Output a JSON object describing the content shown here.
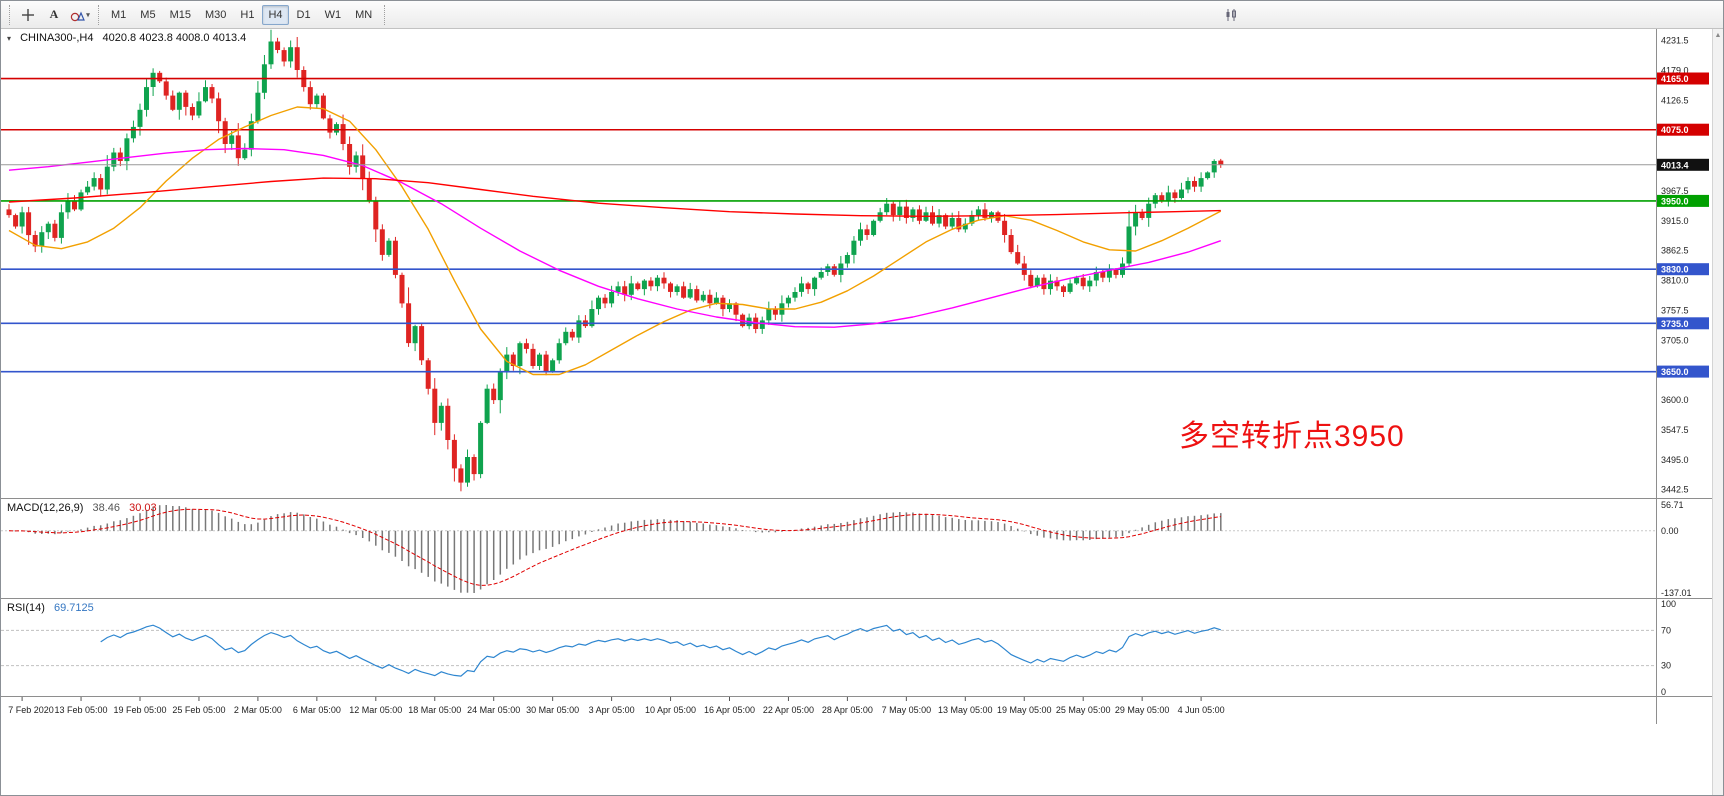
{
  "toolbar": {
    "text_tool_label": "A",
    "timeframes": [
      {
        "label": "M1"
      },
      {
        "label": "M5"
      },
      {
        "label": "M15"
      },
      {
        "label": "M30"
      },
      {
        "label": "H1"
      },
      {
        "label": "H4",
        "active": true
      },
      {
        "label": "D1"
      },
      {
        "label": "W1"
      },
      {
        "label": "MN"
      }
    ]
  },
  "chart": {
    "title": {
      "symbol": "CHINA300-,H4",
      "ohlc": "4020.8 4023.8 4008.0 4013.4"
    },
    "annotation": {
      "text": "多空转折点3950",
      "color": "#ee1111"
    }
  },
  "chart_data": {
    "type": "candlestick",
    "symbol": "CHINA300-,H4",
    "timeframe": "H4",
    "bull_color": "#0fa34e",
    "bear_color": "#df2422",
    "open0": 3935,
    "closes": [
      3925,
      3905,
      3930,
      3890,
      3870,
      3895,
      3910,
      3885,
      3930,
      3950,
      3935,
      3965,
      3975,
      3990,
      3970,
      4010,
      4035,
      4020,
      4060,
      4080,
      4110,
      4150,
      4175,
      4160,
      4135,
      4110,
      4140,
      4115,
      4100,
      4125,
      4150,
      4130,
      4090,
      4050,
      4065,
      4025,
      4040,
      4090,
      4140,
      4190,
      4230,
      4215,
      4195,
      4220,
      4180,
      4150,
      4120,
      4135,
      4095,
      4070,
      4085,
      4050,
      4010,
      4030,
      3990,
      3950,
      3900,
      3855,
      3880,
      3820,
      3770,
      3700,
      3730,
      3670,
      3620,
      3560,
      3590,
      3530,
      3480,
      3455,
      3500,
      3470,
      3560,
      3620,
      3600,
      3650,
      3680,
      3660,
      3700,
      3690,
      3660,
      3680,
      3650,
      3670,
      3700,
      3720,
      3710,
      3740,
      3730,
      3760,
      3780,
      3770,
      3790,
      3800,
      3785,
      3805,
      3795,
      3810,
      3800,
      3815,
      3805,
      3790,
      3800,
      3780,
      3795,
      3775,
      3785,
      3770,
      3780,
      3760,
      3770,
      3750,
      3730,
      3745,
      3725,
      3740,
      3760,
      3750,
      3770,
      3780,
      3790,
      3805,
      3795,
      3815,
      3825,
      3835,
      3820,
      3840,
      3855,
      3880,
      3900,
      3890,
      3915,
      3930,
      3945,
      3925,
      3940,
      3920,
      3935,
      3915,
      3930,
      3910,
      3925,
      3905,
      3920,
      3900,
      3910,
      3925,
      3935,
      3920,
      3930,
      3915,
      3890,
      3860,
      3840,
      3820,
      3800,
      3815,
      3795,
      3810,
      3800,
      3790,
      3805,
      3815,
      3800,
      3810,
      3825,
      3815,
      3830,
      3820,
      3840,
      3905,
      3930,
      3920,
      3945,
      3960,
      3950,
      3965,
      3955,
      3970,
      3985,
      3975,
      3990,
      4000,
      4020,
      4013.4
    ],
    "last_candle": [
      4020.8,
      4023.8,
      4008.0,
      4013.4
    ],
    "price_axis": {
      "ticks": [
        {
          "label": "4231.5",
          "value": 4231.5
        },
        {
          "label": "4179.0",
          "value": 4179
        },
        {
          "label": "4126.5",
          "value": 4126.5
        },
        {
          "label": "3967.5",
          "value": 3967.5
        },
        {
          "label": "3915.0",
          "value": 3915
        },
        {
          "label": "3862.5",
          "value": 3862.5
        },
        {
          "label": "3810.0",
          "value": 3810
        },
        {
          "label": "3757.5",
          "value": 3757.5
        },
        {
          "label": "3705.0",
          "value": 3705
        },
        {
          "label": "3600.0",
          "value": 3600
        },
        {
          "label": "3547.5",
          "value": 3547.5
        },
        {
          "label": "3495.0",
          "value": 3495
        },
        {
          "label": "3442.5",
          "value": 3442.5
        }
      ]
    },
    "hlines": [
      {
        "label": "4165.0",
        "value": 4165,
        "color": "#d40000"
      },
      {
        "label": "4075.0",
        "value": 4075,
        "color": "#d40000"
      },
      {
        "label": "3950.0",
        "value": 3950,
        "color": "#00a000"
      },
      {
        "label": "3830.0",
        "value": 3830,
        "color": "#3355cc"
      },
      {
        "label": "3735.0",
        "value": 3735,
        "color": "#3355cc"
      },
      {
        "label": "3650.0",
        "value": 3650,
        "color": "#3355cc"
      }
    ],
    "price_line": {
      "label": "4013.4",
      "value": 4013.4,
      "color": "#111111"
    },
    "ma_lines": [
      {
        "name": "ma-fast-orange",
        "color": "#f2a000",
        "points": [
          [
            0,
            3898
          ],
          [
            4,
            3872
          ],
          [
            8,
            3866
          ],
          [
            12,
            3878
          ],
          [
            16,
            3902
          ],
          [
            20,
            3938
          ],
          [
            24,
            3985
          ],
          [
            28,
            4025
          ],
          [
            32,
            4058
          ],
          [
            36,
            4080
          ],
          [
            40,
            4100
          ],
          [
            44,
            4115
          ],
          [
            48,
            4112
          ],
          [
            52,
            4090
          ],
          [
            56,
            4040
          ],
          [
            60,
            3975
          ],
          [
            64,
            3900
          ],
          [
            68,
            3810
          ],
          [
            72,
            3725
          ],
          [
            76,
            3668
          ],
          [
            80,
            3645
          ],
          [
            84,
            3645
          ],
          [
            88,
            3662
          ],
          [
            92,
            3688
          ],
          [
            96,
            3714
          ],
          [
            100,
            3738
          ],
          [
            104,
            3758
          ],
          [
            108,
            3770
          ],
          [
            112,
            3768
          ],
          [
            116,
            3760
          ],
          [
            120,
            3760
          ],
          [
            124,
            3772
          ],
          [
            128,
            3792
          ],
          [
            132,
            3818
          ],
          [
            136,
            3848
          ],
          [
            140,
            3878
          ],
          [
            144,
            3900
          ],
          [
            148,
            3916
          ],
          [
            152,
            3924
          ],
          [
            156,
            3916
          ],
          [
            160,
            3898
          ],
          [
            164,
            3878
          ],
          [
            168,
            3864
          ],
          [
            172,
            3862
          ],
          [
            176,
            3880
          ],
          [
            180,
            3902
          ],
          [
            185,
            3932
          ]
        ]
      },
      {
        "name": "ma-mid-magenta",
        "color": "#ff00ff",
        "points": [
          [
            0,
            4004
          ],
          [
            6,
            4010
          ],
          [
            12,
            4018
          ],
          [
            18,
            4026
          ],
          [
            24,
            4034
          ],
          [
            30,
            4040
          ],
          [
            36,
            4042
          ],
          [
            42,
            4040
          ],
          [
            48,
            4030
          ],
          [
            54,
            4012
          ],
          [
            60,
            3982
          ],
          [
            66,
            3945
          ],
          [
            72,
            3902
          ],
          [
            78,
            3862
          ],
          [
            84,
            3828
          ],
          [
            90,
            3800
          ],
          [
            96,
            3778
          ],
          [
            102,
            3760
          ],
          [
            108,
            3746
          ],
          [
            114,
            3736
          ],
          [
            120,
            3729
          ],
          [
            126,
            3728
          ],
          [
            132,
            3734
          ],
          [
            138,
            3746
          ],
          [
            144,
            3762
          ],
          [
            150,
            3780
          ],
          [
            156,
            3798
          ],
          [
            162,
            3814
          ],
          [
            168,
            3828
          ],
          [
            174,
            3842
          ],
          [
            180,
            3860
          ],
          [
            185,
            3880
          ]
        ]
      },
      {
        "name": "ma-slow-red",
        "color": "#ff0000",
        "points": [
          [
            0,
            3948
          ],
          [
            10,
            3955
          ],
          [
            20,
            3964
          ],
          [
            30,
            3974
          ],
          [
            40,
            3984
          ],
          [
            48,
            3990
          ],
          [
            56,
            3989
          ],
          [
            64,
            3982
          ],
          [
            72,
            3970
          ],
          [
            80,
            3958
          ],
          [
            90,
            3946
          ],
          [
            100,
            3938
          ],
          [
            110,
            3931
          ],
          [
            120,
            3927
          ],
          [
            130,
            3924
          ],
          [
            140,
            3923
          ],
          [
            150,
            3924
          ],
          [
            160,
            3926
          ],
          [
            170,
            3929
          ],
          [
            178,
            3931
          ],
          [
            185,
            3933
          ]
        ]
      }
    ],
    "x_tick_indices": [
      2,
      11,
      20,
      29,
      38,
      47,
      56,
      65,
      74,
      83,
      92,
      101,
      110,
      119,
      128,
      137,
      146,
      155,
      164,
      173,
      182
    ],
    "x_labels": [
      "7 Feb 2020",
      "13 Feb 05:00",
      "19 Feb 05:00",
      "25 Feb 05:00",
      "2 Mar 05:00",
      "6 Mar 05:00",
      "12 Mar 05:00",
      "18 Mar 05:00",
      "24 Mar 05:00",
      "30 Mar 05:00",
      "3 Apr 05:00",
      "10 Apr 05:00",
      "16 Apr 05:00",
      "22 Apr 05:00",
      "28 Apr 05:00",
      "7 May 05:00",
      "13 May 05:00",
      "19 May 05:00",
      "25 May 05:00",
      "29 May 05:00",
      "4 Jun 05:00"
    ],
    "macd": {
      "title": "MACD(12,26,9)",
      "value_main": "38.46",
      "value_signal": "30.03",
      "fast": 12,
      "slow": 26,
      "signal": 9,
      "hist_color": "#787878",
      "signal_color": "#e00000",
      "scale": [
        {
          "label": "56.71",
          "value": 56.71
        },
        {
          "label": "0.00",
          "value": 0
        },
        {
          "label": "-137.01",
          "value": -137.01
        }
      ]
    },
    "rsi": {
      "title": "RSI(14)",
      "value": "69.7125",
      "period": 14,
      "line_color": "#2e86d0",
      "levels": [
        {
          "label": "100",
          "value": 100
        },
        {
          "label": "70",
          "value": 70
        },
        {
          "label": "30",
          "value": 30
        },
        {
          "label": "0",
          "value": 0
        }
      ]
    }
  }
}
